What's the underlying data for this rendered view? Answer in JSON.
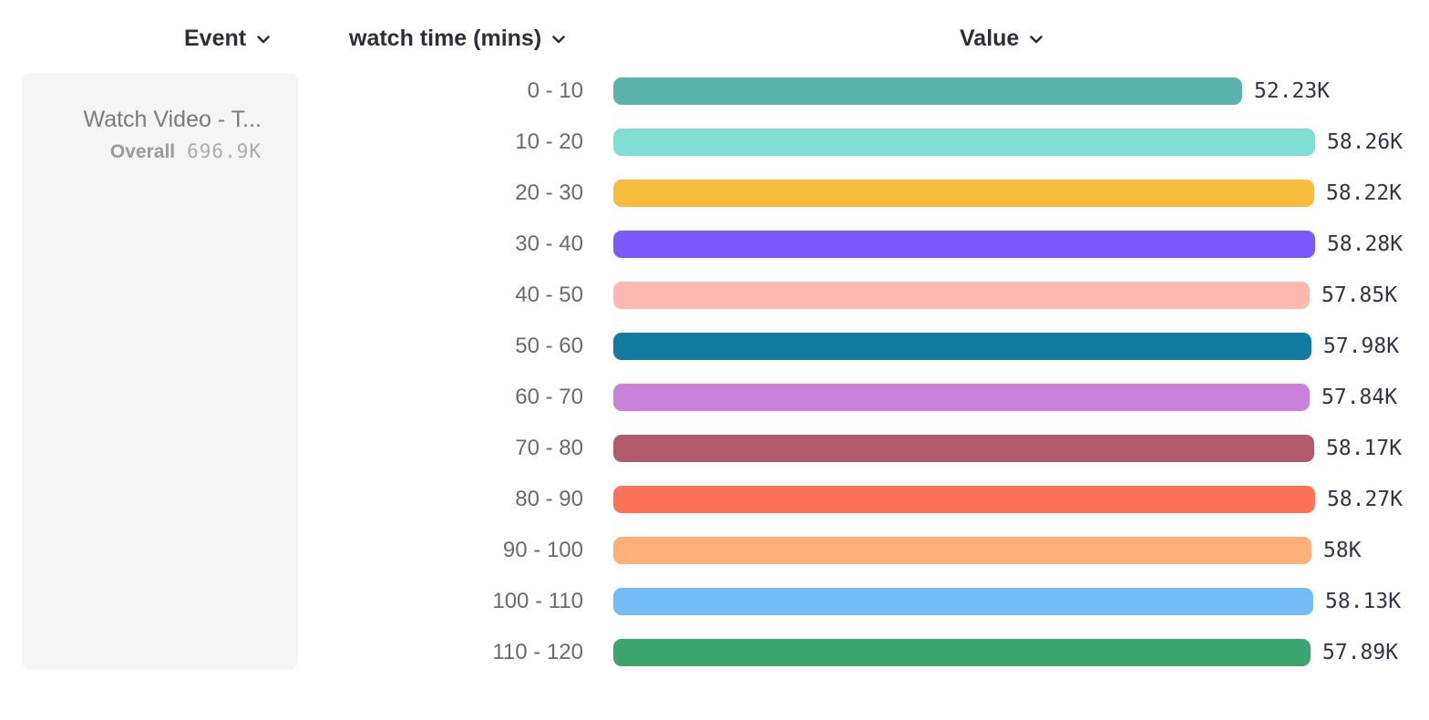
{
  "header": {
    "columns": [
      {
        "id": "event",
        "label": "Event",
        "icon": "chevron-down-icon"
      },
      {
        "id": "breakdown",
        "label": "watch time (mins)",
        "icon": "chevron-down-icon"
      },
      {
        "id": "value",
        "label": "Value",
        "icon": "chevron-down-icon"
      }
    ]
  },
  "event_card": {
    "title": "Watch Video - T...",
    "overall_label": "Overall",
    "overall_value": "696.9K"
  },
  "chart_data": {
    "type": "bar",
    "orientation": "horizontal",
    "title": "",
    "xlabel": "Value",
    "ylabel": "watch time (mins)",
    "unit": "K",
    "xlim": [
      0,
      58.28
    ],
    "grid": false,
    "categories": [
      "0 - 10",
      "10 - 20",
      "20 - 30",
      "30 - 40",
      "40 - 50",
      "50 - 60",
      "60 - 70",
      "70 - 80",
      "80 - 90",
      "90 - 100",
      "100 - 110",
      "110 - 120"
    ],
    "values": [
      52.23,
      58.26,
      58.22,
      58.28,
      57.85,
      57.98,
      57.84,
      58.17,
      58.27,
      58.0,
      58.13,
      57.89
    ],
    "value_labels": [
      "52.23K",
      "58.26K",
      "58.22K",
      "58.28K",
      "57.85K",
      "57.98K",
      "57.84K",
      "58.17K",
      "58.27K",
      "58K",
      "58.13K",
      "57.89K"
    ],
    "colors": [
      "#5ab4ad",
      "#80dfd4",
      "#f7bb3d",
      "#7a58fb",
      "#fdb9b0",
      "#117ca0",
      "#ca81db",
      "#b05a6c",
      "#fd7357",
      "#fdb077",
      "#73bcf6",
      "#3aa56f"
    ]
  },
  "layout_colors": {
    "card_background": "#f5f5f6",
    "header_text": "#2c2e3a",
    "bucket_label_text": "#696a6c",
    "value_text": "#333449"
  }
}
